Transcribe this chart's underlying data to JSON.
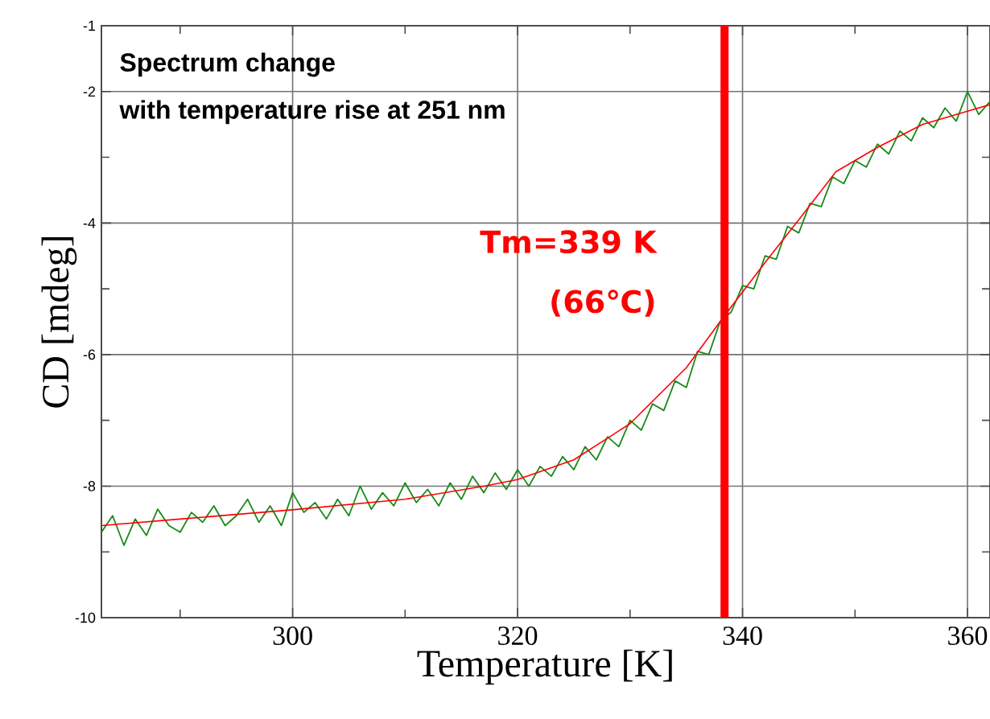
{
  "chart_data": {
    "type": "line",
    "xlabel": "Temperature [K]",
    "ylabel": "CD [mdeg]",
    "xlim": [
      283,
      362
    ],
    "ylim": [
      -10,
      -1
    ],
    "xticks": [
      300,
      320,
      340,
      360,
      {
        "value": 290,
        "label": null
      },
      {
        "value": 310,
        "label": null
      },
      {
        "value": 330,
        "label": null
      },
      {
        "value": 350,
        "label": null
      }
    ],
    "yticks": [
      -10,
      -8,
      -6,
      -4,
      -2,
      -1,
      {
        "value": -9,
        "label": null
      },
      {
        "value": -7,
        "label": null
      },
      {
        "value": -5,
        "label": null
      },
      {
        "value": -3,
        "label": null
      }
    ],
    "grid": true,
    "marker": "none",
    "line_style": "solid",
    "series": [
      {
        "color": "#1a8a1a",
        "x": [
          283,
          284,
          285,
          286,
          287,
          288,
          289,
          290,
          291,
          292,
          293,
          294,
          295,
          296,
          297,
          298,
          299,
          300,
          301,
          302,
          303,
          304,
          305,
          306,
          307,
          308,
          309,
          310,
          311,
          312,
          313,
          314,
          315,
          316,
          317,
          318,
          319,
          320,
          321,
          322,
          323,
          324,
          325,
          326,
          327,
          328,
          329,
          330,
          331,
          332,
          333,
          334,
          335,
          336,
          337,
          338,
          339,
          340,
          341,
          342,
          343,
          344,
          345,
          346,
          347,
          348,
          349,
          350,
          351,
          352,
          353,
          354,
          355,
          356,
          357,
          358,
          359,
          360,
          361,
          362
        ],
        "values": [
          -8.7,
          -8.45,
          -8.9,
          -8.5,
          -8.75,
          -8.35,
          -8.6,
          -8.7,
          -8.4,
          -8.55,
          -8.3,
          -8.6,
          -8.45,
          -8.2,
          -8.55,
          -8.3,
          -8.6,
          -8.1,
          -8.4,
          -8.25,
          -8.5,
          -8.2,
          -8.45,
          -8.0,
          -8.35,
          -8.1,
          -8.3,
          -7.95,
          -8.25,
          -8.05,
          -8.3,
          -7.95,
          -8.2,
          -7.85,
          -8.1,
          -7.8,
          -8.05,
          -7.75,
          -8.0,
          -7.7,
          -7.85,
          -7.55,
          -7.75,
          -7.4,
          -7.6,
          -7.25,
          -7.4,
          -7.0,
          -7.15,
          -6.75,
          -6.85,
          -6.4,
          -6.5,
          -5.95,
          -6.0,
          -5.5,
          -5.35,
          -4.95,
          -5.0,
          -4.5,
          -4.55,
          -4.05,
          -4.15,
          -3.7,
          -3.75,
          -3.3,
          -3.4,
          -3.05,
          -3.15,
          -2.8,
          -2.95,
          -2.6,
          -2.75,
          -2.4,
          -2.55,
          -2.25,
          -2.45,
          -2.0,
          -2.35,
          -2.15
        ]
      },
      {
        "color": "#ff0000",
        "x": [
          283,
          290,
          300,
          310,
          317,
          320,
          325,
          330,
          335,
          338.3,
          342,
          345,
          348.3,
          352,
          356,
          360,
          362
        ],
        "values": [
          -8.6,
          -8.5,
          -8.36,
          -8.2,
          -8.0,
          -7.9,
          -7.6,
          -7.05,
          -6.2,
          -5.43,
          -4.6,
          -3.95,
          -3.22,
          -2.85,
          -2.5,
          -2.3,
          -2.2
        ]
      }
    ],
    "ref_lines": [
      {
        "axis": "x",
        "value": 338.4,
        "color": "#ff0000"
      }
    ],
    "annotations": [
      "Spectrum change",
      "with temperature rise at 251 nm",
      "Tm=339 K",
      "(66℃)"
    ]
  }
}
